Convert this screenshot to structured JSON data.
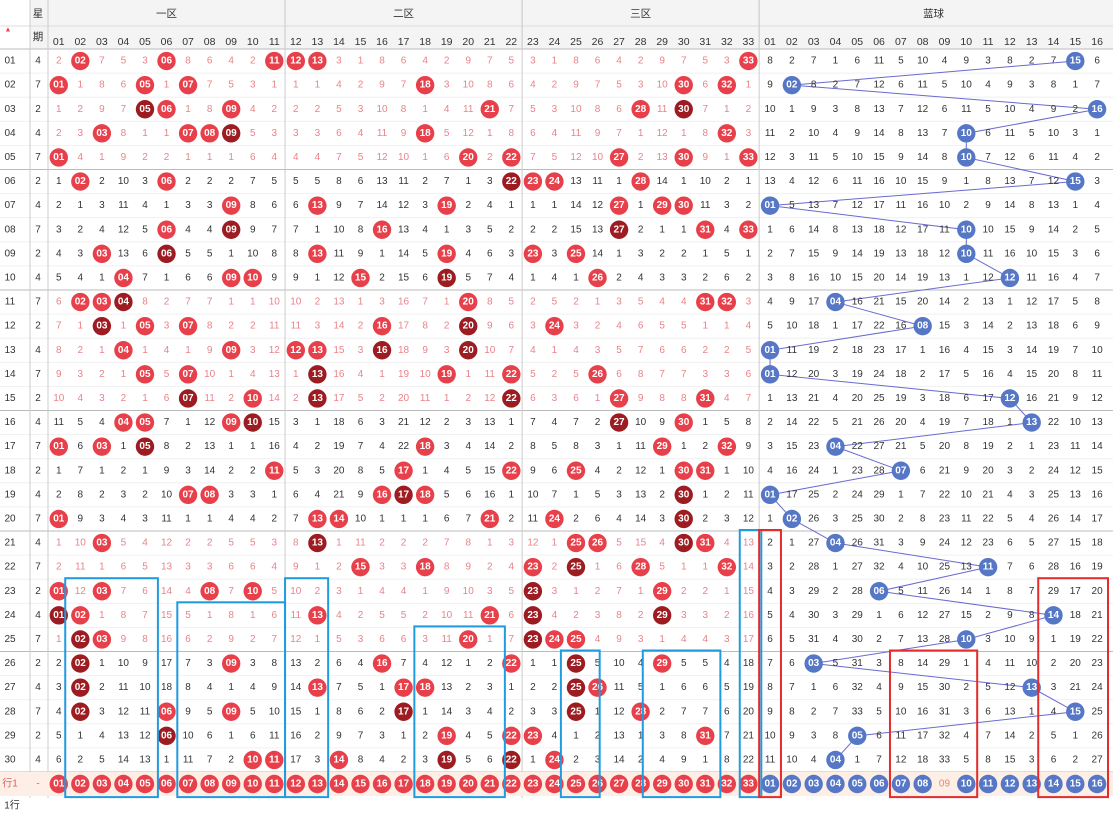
{
  "chart_data": {
    "type": "table",
    "title": "",
    "header": {
      "weekday_label_top": "星",
      "weekday_label_bottom": "期",
      "zones": [
        {
          "name": "一区",
          "from": 1,
          "to": 11
        },
        {
          "name": "二区",
          "from": 12,
          "to": 22
        },
        {
          "name": "三区",
          "from": 23,
          "to": 33
        },
        {
          "name": "蓝球",
          "from": 1,
          "to": 16
        }
      ]
    },
    "issue_labels": [
      "01",
      "02",
      "03",
      "04",
      "05",
      "06",
      "07",
      "08",
      "09",
      "10",
      "11",
      "12",
      "13",
      "14",
      "15",
      "16",
      "17",
      "18",
      "19",
      "20",
      "21",
      "22",
      "23",
      "24",
      "25",
      "26",
      "27",
      "28",
      "29",
      "30"
    ],
    "weekdays": [
      "4",
      "7",
      "2",
      "4",
      "7",
      "2",
      "4",
      "7",
      "2",
      "4",
      "7",
      "2",
      "4",
      "7",
      "2",
      "4",
      "7",
      "2",
      "4",
      "7",
      "4",
      "7",
      "2",
      "4",
      "7",
      "2",
      "4",
      "7",
      "2",
      "4"
    ],
    "red_balls": [
      [
        2,
        6,
        11,
        12,
        13,
        33
      ],
      [
        1,
        5,
        7,
        18,
        30,
        32
      ],
      [
        5,
        6,
        9,
        21,
        28,
        30
      ],
      [
        3,
        7,
        8,
        9,
        18,
        32
      ],
      [
        1,
        20,
        22,
        27,
        30,
        33
      ],
      [
        2,
        6,
        22,
        23,
        24,
        28
      ],
      [
        9,
        13,
        19,
        27,
        29,
        30
      ],
      [
        6,
        9,
        16,
        27,
        31,
        33
      ],
      [
        3,
        6,
        13,
        19,
        23,
        25
      ],
      [
        4,
        9,
        10,
        15,
        19,
        26
      ],
      [
        2,
        3,
        4,
        20,
        31,
        32
      ],
      [
        3,
        5,
        7,
        16,
        20,
        24
      ],
      [
        4,
        9,
        12,
        13,
        16,
        20
      ],
      [
        5,
        7,
        13,
        19,
        22,
        26
      ],
      [
        7,
        10,
        13,
        22,
        27,
        31
      ],
      [
        4,
        5,
        9,
        10,
        27,
        30
      ],
      [
        1,
        3,
        5,
        18,
        29,
        32
      ],
      [
        11,
        17,
        22,
        25,
        30,
        31
      ],
      [
        7,
        8,
        16,
        17,
        18,
        30
      ],
      [
        1,
        13,
        14,
        21,
        24,
        30
      ],
      [
        3,
        13,
        25,
        26,
        30,
        31
      ],
      [
        15,
        18,
        23,
        25,
        28,
        32
      ],
      [
        1,
        3,
        8,
        10,
        23,
        29
      ],
      [
        1,
        2,
        13,
        21,
        23,
        29
      ],
      [
        2,
        3,
        20,
        23,
        24,
        25
      ],
      [
        2,
        9,
        16,
        22,
        25,
        29
      ],
      [
        2,
        13,
        17,
        18,
        25,
        26
      ],
      [
        2,
        6,
        9,
        17,
        25,
        28
      ],
      [
        6,
        19,
        22,
        23,
        31,
        31
      ],
      [
        10,
        11,
        14,
        19,
        22,
        24
      ]
    ],
    "blue_balls": [
      15,
      2,
      16,
      10,
      10,
      15,
      1,
      10,
      10,
      12,
      4,
      8,
      1,
      1,
      12,
      13,
      4,
      7,
      1,
      2,
      4,
      11,
      6,
      14,
      10,
      3,
      13,
      15,
      5,
      4
    ],
    "omission_note": "non-winning cells show omission counts",
    "stats_row": {
      "label": "行1",
      "dash": "-"
    },
    "footer_label": "1行",
    "colors": {
      "red_ball": "#e8404a",
      "repeat_ball": "#9c1c22",
      "blue_ball": "#5677c6",
      "connector_line": "#6a6ad0",
      "blue_box": "#1f9be0",
      "red_box": "#e52b2b",
      "miss_text_red": "#e9838a",
      "miss_text_gray": "#333333",
      "header_bg": "#f4f4f4",
      "stats_row_bg": "#fdeee6"
    }
  }
}
